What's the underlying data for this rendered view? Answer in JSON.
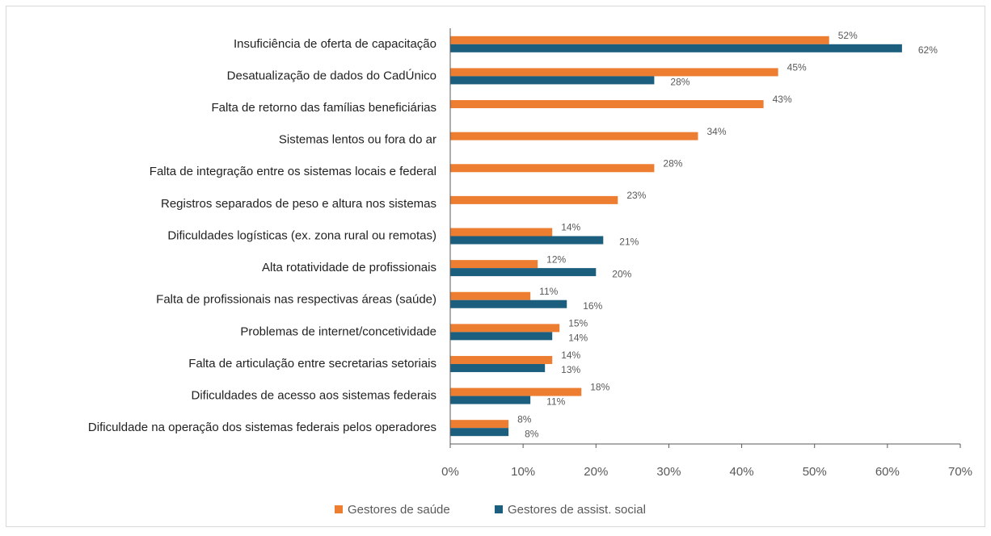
{
  "chart_data": {
    "type": "bar",
    "orientation": "horizontal",
    "categories": [
      "Insuficiência de oferta de capacitação",
      "Desatualização de dados do CadÚnico",
      "Falta de retorno das famílias beneficiárias",
      "Sistemas lentos ou fora do ar",
      "Falta de integração entre os sistemas locais e federal",
      "Registros separados de peso e altura nos sistemas",
      "Dificuldades logísticas (ex. zona rural ou remotas)",
      "Alta rotatividade de profissionais",
      "Falta de profissionais nas respectivas áreas (saúde)",
      "Problemas de internet/concetividade",
      "Falta de articulação entre secretarias setoriais",
      "Dificuldades de acesso aos sistemas federais",
      "Dificuldade na operação dos sistemas federais pelos operadores"
    ],
    "series": [
      {
        "name": "Gestores de saúde",
        "color": "#ED7D31",
        "values": [
          52,
          45,
          43,
          34,
          28,
          23,
          14,
          12,
          11,
          15,
          14,
          18,
          8
        ],
        "value_labels": [
          "52%",
          "45%",
          "43%",
          "34%",
          "28%",
          "23%",
          "14%",
          "12%",
          "11%",
          "15%",
          "14%",
          "18%",
          "8%"
        ]
      },
      {
        "name": "Gestores de assist. social",
        "color": "#1B5E7E",
        "values": [
          62,
          28,
          null,
          null,
          null,
          null,
          21,
          20,
          16,
          14,
          13,
          11,
          8
        ],
        "value_labels": [
          "62%",
          "28%",
          null,
          null,
          null,
          null,
          "21%",
          "20%",
          "16%",
          "14%",
          "13%",
          "11%",
          "8%"
        ]
      }
    ],
    "xlim": [
      0,
      70
    ],
    "xticks": [
      {
        "value": 0,
        "label": "0%"
      },
      {
        "value": 10,
        "label": "10%"
      },
      {
        "value": 20,
        "label": "20%"
      },
      {
        "value": 30,
        "label": "30%"
      },
      {
        "value": 40,
        "label": "40%"
      },
      {
        "value": 50,
        "label": "50%"
      },
      {
        "value": 60,
        "label": "60%"
      },
      {
        "value": 70,
        "label": "70%"
      }
    ],
    "legend": "bottom"
  }
}
